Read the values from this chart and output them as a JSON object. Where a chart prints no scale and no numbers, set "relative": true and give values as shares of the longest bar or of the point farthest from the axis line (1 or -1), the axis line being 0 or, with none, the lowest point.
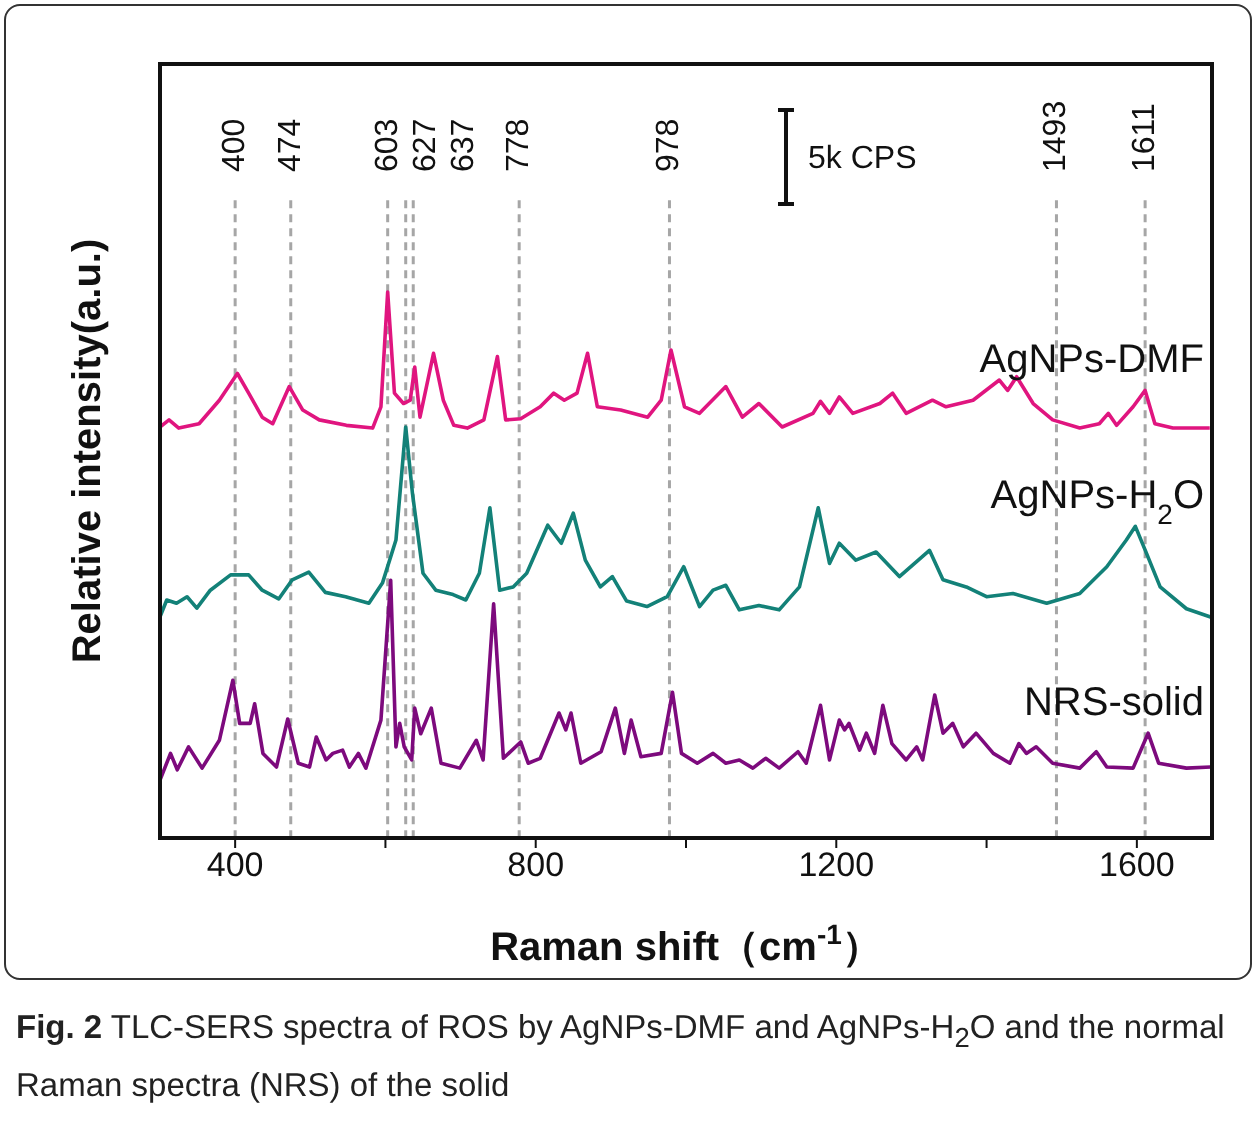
{
  "chart_data": {
    "type": "line",
    "relative": true,
    "xlabel": "Raman shift（cm$^{-1}$）",
    "ylabel": "Relative intensity(a.u.)",
    "annotations": [
      "5k CPS",
      "Fig. 2 TLC-SERS spectra of ROS by AgNPs-DMF and AgNPs-H$_{2}$O and the normal Raman spectra (NRS) of the solid"
    ],
    "xlim": [
      300,
      1700
    ],
    "xticks": [
      400,
      {
        "value": 600,
        "label": null
      },
      800,
      {
        "value": 1000,
        "label": null
      },
      1200,
      {
        "value": 1400,
        "label": null
      },
      1600
    ],
    "marker": "none",
    "line_style": "solid",
    "ref_lines": [
      {
        "axis": "x",
        "value": 400,
        "label": "400",
        "color": "#a6a6a6",
        "line_style": "dashed"
      },
      {
        "axis": "x",
        "value": 474,
        "label": "474",
        "color": "#a6a6a6",
        "line_style": "dashed"
      },
      {
        "axis": "x",
        "value": 603,
        "label": "603",
        "color": "#a6a6a6",
        "line_style": "dashed"
      },
      {
        "axis": "x",
        "value": 627,
        "label": "627",
        "color": "#a6a6a6",
        "line_style": "dashed"
      },
      {
        "axis": "x",
        "value": 637,
        "label": "637",
        "color": "#a6a6a6",
        "line_style": "dashed"
      },
      {
        "axis": "x",
        "value": 778,
        "label": "778",
        "color": "#a6a6a6",
        "line_style": "dashed"
      },
      {
        "axis": "x",
        "value": 978,
        "label": "978",
        "color": "#a6a6a6",
        "line_style": "dashed"
      },
      {
        "axis": "x",
        "value": 1493,
        "label": "1493",
        "color": "#a6a6a6",
        "line_style": "dashed"
      },
      {
        "axis": "x",
        "value": 1611,
        "label": "1611",
        "color": "#a6a6a6",
        "line_style": "dashed"
      }
    ],
    "series": [
      {
        "name": "AgNPs-DMF",
        "color": "#e0157f",
        "x": [
          300,
          312,
          325,
          352,
          379,
          403,
          418,
          436,
          450,
          472,
          490,
          512,
          548,
          583,
          594,
          603,
          612,
          624,
          633,
          639,
          646,
          664,
          677,
          691,
          709,
          731,
          749,
          760,
          780,
          806,
          824,
          838,
          855,
          869,
          882,
          913,
          949,
          967,
          980,
          998,
          1018,
          1053,
          1075,
          1097,
          1128,
          1169,
          1179,
          1191,
          1204,
          1222,
          1258,
          1275,
          1293,
          1328,
          1346,
          1382,
          1417,
          1428,
          1440,
          1462,
          1488,
          1524,
          1550,
          1562,
          1573,
          1595,
          1611,
          1624,
          1648,
          1697
        ],
        "values": [
          0.753,
          0.766,
          0.751,
          0.759,
          0.802,
          0.851,
          0.815,
          0.771,
          0.759,
          0.827,
          0.784,
          0.766,
          0.756,
          0.751,
          0.79,
          1.0,
          0.815,
          0.796,
          0.802,
          0.863,
          0.771,
          0.888,
          0.802,
          0.756,
          0.751,
          0.766,
          0.882,
          0.766,
          0.768,
          0.79,
          0.815,
          0.802,
          0.815,
          0.888,
          0.79,
          0.784,
          0.771,
          0.802,
          0.894,
          0.79,
          0.778,
          0.827,
          0.771,
          0.796,
          0.753,
          0.778,
          0.8,
          0.778,
          0.808,
          0.778,
          0.796,
          0.815,
          0.778,
          0.802,
          0.79,
          0.802,
          0.839,
          0.82,
          0.845,
          0.796,
          0.766,
          0.751,
          0.759,
          0.778,
          0.756,
          0.79,
          0.82,
          0.759,
          0.751,
          0.751
        ]
      },
      {
        "name": "AgNPs-H$_{2}$O",
        "color": "#138178",
        "x": [
          300,
          309,
          322,
          336,
          349,
          367,
          394,
          418,
          436,
          458,
          476,
          498,
          520,
          547,
          578,
          596,
          614,
          627,
          636,
          650,
          667,
          690,
          707,
          725,
          739,
          752,
          770,
          788,
          816,
          834,
          850,
          866,
          886,
          902,
          921,
          948,
          975,
          997,
          1018,
          1036,
          1053,
          1071,
          1097,
          1124,
          1151,
          1176,
          1191,
          1204,
          1226,
          1253,
          1284,
          1324,
          1342,
          1373,
          1400,
          1435,
          1480,
          1524,
          1560,
          1586,
          1598,
          1613,
          1631,
          1666,
          1698
        ],
        "values": [
          0.405,
          0.436,
          0.43,
          0.442,
          0.421,
          0.454,
          0.482,
          0.482,
          0.454,
          0.438,
          0.473,
          0.487,
          0.45,
          0.442,
          0.43,
          0.467,
          0.546,
          0.753,
          0.631,
          0.485,
          0.454,
          0.446,
          0.436,
          0.485,
          0.605,
          0.454,
          0.46,
          0.485,
          0.573,
          0.54,
          0.595,
          0.509,
          0.46,
          0.479,
          0.434,
          0.424,
          0.442,
          0.497,
          0.424,
          0.454,
          0.463,
          0.418,
          0.426,
          0.418,
          0.46,
          0.605,
          0.503,
          0.54,
          0.509,
          0.524,
          0.479,
          0.527,
          0.473,
          0.46,
          0.442,
          0.448,
          0.43,
          0.448,
          0.497,
          0.546,
          0.571,
          0.521,
          0.46,
          0.42,
          0.405
        ]
      },
      {
        "name": "NRS-solid",
        "color": "#7d0a7d",
        "x": [
          300,
          314,
          323,
          338,
          356,
          379,
          397,
          406,
          420,
          426,
          437,
          455,
          470,
          484,
          499,
          508,
          521,
          530,
          543,
          552,
          564,
          574,
          594,
          607,
          614,
          619,
          625,
          635,
          639,
          647,
          661,
          674,
          699,
          721,
          730,
          744,
          757,
          780,
          790,
          806,
          831,
          840,
          847,
          860,
          887,
          906,
          918,
          927,
          940,
          967,
          982,
          994,
          1015,
          1036,
          1053,
          1071,
          1089,
          1106,
          1124,
          1149,
          1160,
          1179,
          1191,
          1204,
          1211,
          1217,
          1231,
          1240,
          1251,
          1262,
          1274,
          1293,
          1307,
          1315,
          1331,
          1342,
          1355,
          1369,
          1386,
          1409,
          1431,
          1443,
          1453,
          1466,
          1488,
          1524,
          1546,
          1560,
          1595,
          1615,
          1629,
          1666,
          1698
        ],
        "values": [
          0.106,
          0.155,
          0.125,
          0.167,
          0.128,
          0.179,
          0.289,
          0.21,
          0.21,
          0.246,
          0.155,
          0.13,
          0.218,
          0.137,
          0.13,
          0.185,
          0.143,
          0.155,
          0.161,
          0.13,
          0.155,
          0.128,
          0.216,
          0.472,
          0.167,
          0.21,
          0.167,
          0.143,
          0.238,
          0.191,
          0.238,
          0.137,
          0.128,
          0.179,
          0.143,
          0.429,
          0.146,
          0.176,
          0.137,
          0.146,
          0.229,
          0.198,
          0.229,
          0.137,
          0.158,
          0.238,
          0.155,
          0.216,
          0.149,
          0.155,
          0.267,
          0.155,
          0.137,
          0.155,
          0.137,
          0.143,
          0.128,
          0.146,
          0.128,
          0.158,
          0.137,
          0.243,
          0.143,
          0.216,
          0.198,
          0.21,
          0.161,
          0.192,
          0.155,
          0.243,
          0.173,
          0.143,
          0.167,
          0.143,
          0.262,
          0.192,
          0.21,
          0.167,
          0.192,
          0.155,
          0.137,
          0.173,
          0.155,
          0.167,
          0.137,
          0.128,
          0.158,
          0.13,
          0.128,
          0.192,
          0.137,
          0.128,
          0.13
        ]
      }
    ]
  }
}
